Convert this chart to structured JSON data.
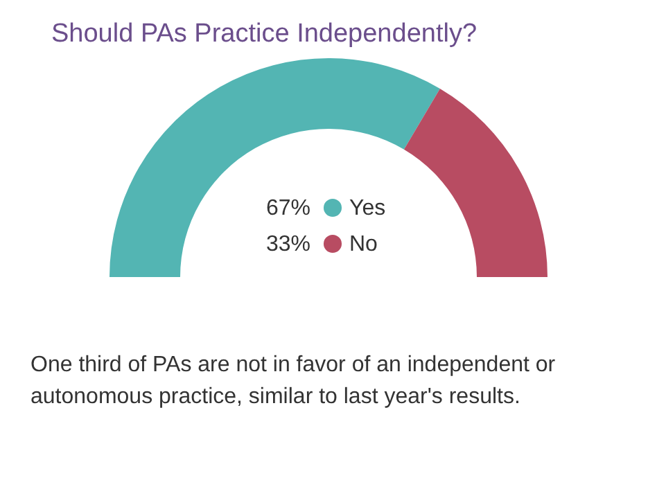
{
  "chart_data": {
    "type": "donut",
    "title": "Should PAs Practice Independently?",
    "categories": [
      "Yes",
      "No"
    ],
    "values": [
      67,
      33
    ],
    "value_labels": [
      "67%",
      "33%"
    ],
    "colors": [
      "#53b5b3",
      "#b84c62"
    ],
    "legend": "bottom",
    "annotations": [
      "One third of PAs are not in favor of an independent or\nautonomous practice, similar to last year's results."
    ]
  }
}
